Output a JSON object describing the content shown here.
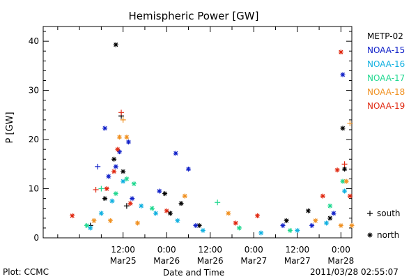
{
  "footer": {
    "plot_credit": "Plot: CCMC",
    "timestamp": "2011/03/28 02:55:07"
  },
  "colors": {
    "METP-02": "#000000",
    "NOAA-15": "#1020c8",
    "NOAA-16": "#10b0e0",
    "NOAA-17": "#20d890",
    "NOAA-18": "#f09020",
    "NOAA-19": "#e02810"
  },
  "chart_data": {
    "type": "scatter",
    "title": "Hemispheric Power [GW]",
    "xlabel": "Date and Time",
    "ylabel": "P [GW]",
    "xlim": [
      "2011-03-24T14:00",
      "2011-03-28T03:00"
    ],
    "ylim": [
      0,
      43
    ],
    "yticks": [
      0,
      10,
      20,
      30,
      40
    ],
    "xticks": [
      {
        "t": "2011-03-24T18:00",
        "label": ""
      },
      {
        "t": "2011-03-25T00:00",
        "label": ""
      },
      {
        "t": "2011-03-25T06:00",
        "label": ""
      },
      {
        "t": "2011-03-25T12:00",
        "label": "12:00\nMar25"
      },
      {
        "t": "2011-03-25T18:00",
        "label": ""
      },
      {
        "t": "2011-03-26T00:00",
        "label": "0:00\nMar26"
      },
      {
        "t": "2011-03-26T06:00",
        "label": ""
      },
      {
        "t": "2011-03-26T12:00",
        "label": "12:00\nMar26"
      },
      {
        "t": "2011-03-26T18:00",
        "label": ""
      },
      {
        "t": "2011-03-27T00:00",
        "label": "0:00\nMar27"
      },
      {
        "t": "2011-03-27T06:00",
        "label": ""
      },
      {
        "t": "2011-03-27T12:00",
        "label": "12:00\nMar27"
      },
      {
        "t": "2011-03-27T18:00",
        "label": ""
      },
      {
        "t": "2011-03-28T00:00",
        "label": "0:00\nMar28"
      }
    ],
    "legend_position": "right",
    "markers_legend": [
      {
        "symbol": "+",
        "label": "south"
      },
      {
        "symbol": "*",
        "label": "north"
      }
    ],
    "series": [
      {
        "name": "METP-02",
        "points": [
          {
            "t": "2011-03-25T03:00",
            "v": 2.5,
            "m": "+"
          },
          {
            "t": "2011-03-25T07:00",
            "v": 8.0,
            "m": "*"
          },
          {
            "t": "2011-03-25T09:30",
            "v": 16.0,
            "m": "*"
          },
          {
            "t": "2011-03-25T10:00",
            "v": 39.3,
            "m": "*"
          },
          {
            "t": "2011-03-25T11:30",
            "v": 24.8,
            "m": "+"
          },
          {
            "t": "2011-03-25T12:00",
            "v": 13.5,
            "m": "*"
          },
          {
            "t": "2011-03-25T13:00",
            "v": 6.5,
            "m": "+"
          },
          {
            "t": "2011-03-25T23:30",
            "v": 9.0,
            "m": "*"
          },
          {
            "t": "2011-03-26T01:00",
            "v": 5.0,
            "m": "*"
          },
          {
            "t": "2011-03-26T04:00",
            "v": 7.0,
            "m": "*"
          },
          {
            "t": "2011-03-26T09:00",
            "v": 2.5,
            "m": "*"
          },
          {
            "t": "2011-03-27T09:00",
            "v": 3.5,
            "m": "*"
          },
          {
            "t": "2011-03-27T15:00",
            "v": 5.5,
            "m": "*"
          },
          {
            "t": "2011-03-27T21:00",
            "v": 4.0,
            "m": "*"
          },
          {
            "t": "2011-03-28T00:30",
            "v": 22.3,
            "m": "*"
          },
          {
            "t": "2011-03-28T01:00",
            "v": 14.0,
            "m": "*"
          }
        ]
      },
      {
        "name": "NOAA-15",
        "points": [
          {
            "t": "2011-03-25T05:00",
            "v": 14.5,
            "m": "+"
          },
          {
            "t": "2011-03-25T07:00",
            "v": 22.3,
            "m": "*"
          },
          {
            "t": "2011-03-25T08:00",
            "v": 12.5,
            "m": "*"
          },
          {
            "t": "2011-03-25T10:00",
            "v": 14.5,
            "m": "*"
          },
          {
            "t": "2011-03-25T11:00",
            "v": 17.5,
            "m": "*"
          },
          {
            "t": "2011-03-25T13:30",
            "v": 19.5,
            "m": "*"
          },
          {
            "t": "2011-03-25T14:30",
            "v": 8.0,
            "m": "*"
          },
          {
            "t": "2011-03-25T22:00",
            "v": 9.5,
            "m": "*"
          },
          {
            "t": "2011-03-26T02:30",
            "v": 17.2,
            "m": "*"
          },
          {
            "t": "2011-03-26T06:00",
            "v": 14.0,
            "m": "*"
          },
          {
            "t": "2011-03-26T08:00",
            "v": 2.5,
            "m": "*"
          },
          {
            "t": "2011-03-27T08:00",
            "v": 2.5,
            "m": "*"
          },
          {
            "t": "2011-03-27T16:00",
            "v": 2.5,
            "m": "*"
          },
          {
            "t": "2011-03-27T22:00",
            "v": 5.0,
            "m": "*"
          },
          {
            "t": "2011-03-28T00:30",
            "v": 33.2,
            "m": "*"
          }
        ]
      },
      {
        "name": "NOAA-16",
        "points": [
          {
            "t": "2011-03-25T03:00",
            "v": 2.0,
            "m": "*"
          },
          {
            "t": "2011-03-25T06:00",
            "v": 5.0,
            "m": "*"
          },
          {
            "t": "2011-03-25T09:00",
            "v": 7.5,
            "m": "*"
          },
          {
            "t": "2011-03-25T12:00",
            "v": 11.5,
            "m": "*"
          },
          {
            "t": "2011-03-25T17:00",
            "v": 6.5,
            "m": "*"
          },
          {
            "t": "2011-03-25T21:00",
            "v": 5.0,
            "m": "*"
          },
          {
            "t": "2011-03-26T03:00",
            "v": 3.5,
            "m": "*"
          },
          {
            "t": "2011-03-26T10:00",
            "v": 1.5,
            "m": "*"
          },
          {
            "t": "2011-03-27T02:00",
            "v": 1.0,
            "m": "*"
          },
          {
            "t": "2011-03-27T12:00",
            "v": 1.5,
            "m": "*"
          },
          {
            "t": "2011-03-27T20:00",
            "v": 3.0,
            "m": "*"
          },
          {
            "t": "2011-03-28T01:00",
            "v": 9.5,
            "m": "*"
          }
        ]
      },
      {
        "name": "NOAA-17",
        "points": [
          {
            "t": "2011-03-25T02:00",
            "v": 2.5,
            "m": "*"
          },
          {
            "t": "2011-03-25T06:00",
            "v": 10.0,
            "m": "+"
          },
          {
            "t": "2011-03-25T10:00",
            "v": 9.0,
            "m": "*"
          },
          {
            "t": "2011-03-25T13:00",
            "v": 12.0,
            "m": "*"
          },
          {
            "t": "2011-03-25T15:00",
            "v": 11.0,
            "m": "*"
          },
          {
            "t": "2011-03-25T20:00",
            "v": 6.0,
            "m": "*"
          },
          {
            "t": "2011-03-26T14:00",
            "v": 7.2,
            "m": "+"
          },
          {
            "t": "2011-03-26T20:00",
            "v": 2.0,
            "m": "*"
          },
          {
            "t": "2011-03-27T10:00",
            "v": 1.5,
            "m": "*"
          },
          {
            "t": "2011-03-27T21:00",
            "v": 6.5,
            "m": "*"
          },
          {
            "t": "2011-03-28T00:30",
            "v": 11.5,
            "m": "*"
          }
        ]
      },
      {
        "name": "NOAA-18",
        "points": [
          {
            "t": "2011-03-25T04:00",
            "v": 3.5,
            "m": "*"
          },
          {
            "t": "2011-03-25T08:30",
            "v": 3.5,
            "m": "*"
          },
          {
            "t": "2011-03-25T11:00",
            "v": 20.5,
            "m": "*"
          },
          {
            "t": "2011-03-25T12:00",
            "v": 24.0,
            "m": "+"
          },
          {
            "t": "2011-03-25T13:00",
            "v": 20.5,
            "m": "*"
          },
          {
            "t": "2011-03-25T16:00",
            "v": 3.0,
            "m": "*"
          },
          {
            "t": "2011-03-26T05:00",
            "v": 8.5,
            "m": "*"
          },
          {
            "t": "2011-03-26T17:00",
            "v": 5.0,
            "m": "*"
          },
          {
            "t": "2011-03-27T17:00",
            "v": 3.5,
            "m": "*"
          },
          {
            "t": "2011-03-28T00:00",
            "v": 2.5,
            "m": "*"
          },
          {
            "t": "2011-03-28T01:30",
            "v": 11.5,
            "m": "*"
          },
          {
            "t": "2011-03-28T02:30",
            "v": 23.3,
            "m": "+"
          },
          {
            "t": "2011-03-28T03:00",
            "v": 2.5,
            "m": "*"
          }
        ]
      },
      {
        "name": "NOAA-19",
        "points": [
          {
            "t": "2011-03-24T22:00",
            "v": 4.5,
            "m": "*"
          },
          {
            "t": "2011-03-25T04:30",
            "v": 9.8,
            "m": "+"
          },
          {
            "t": "2011-03-25T07:30",
            "v": 10.0,
            "m": "*"
          },
          {
            "t": "2011-03-25T09:30",
            "v": 13.5,
            "m": "*"
          },
          {
            "t": "2011-03-25T10:30",
            "v": 18.0,
            "m": "*"
          },
          {
            "t": "2011-03-25T11:30",
            "v": 25.5,
            "m": "+"
          },
          {
            "t": "2011-03-25T14:00",
            "v": 7.0,
            "m": "*"
          },
          {
            "t": "2011-03-26T00:00",
            "v": 5.5,
            "m": "*"
          },
          {
            "t": "2011-03-26T19:00",
            "v": 3.0,
            "m": "*"
          },
          {
            "t": "2011-03-27T01:00",
            "v": 4.5,
            "m": "*"
          },
          {
            "t": "2011-03-27T19:00",
            "v": 8.5,
            "m": "*"
          },
          {
            "t": "2011-03-27T23:00",
            "v": 13.8,
            "m": "*"
          },
          {
            "t": "2011-03-28T00:00",
            "v": 37.8,
            "m": "*"
          },
          {
            "t": "2011-03-28T01:00",
            "v": 15.0,
            "m": "+"
          },
          {
            "t": "2011-03-28T02:30",
            "v": 8.5,
            "m": "*"
          }
        ]
      }
    ]
  }
}
